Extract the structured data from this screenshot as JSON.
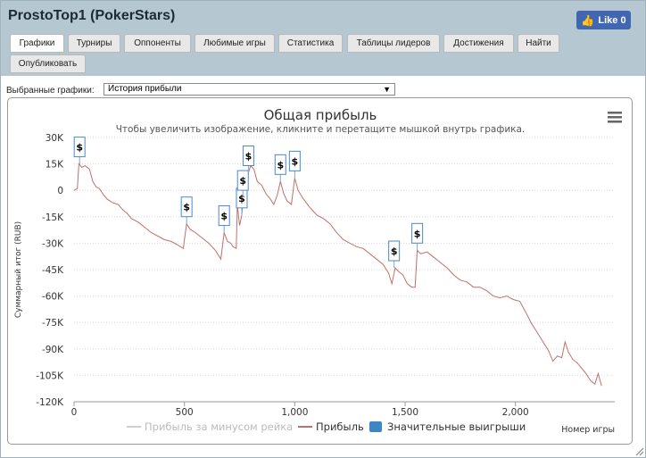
{
  "window": {
    "title": "ProstoTop1 (PokerStars)"
  },
  "like": {
    "label": "Like 0"
  },
  "tabs": [
    {
      "label": "Графики",
      "active": true
    },
    {
      "label": "Турниры"
    },
    {
      "label": "Оппоненты"
    },
    {
      "label": "Любимые игры"
    },
    {
      "label": "Статистика"
    },
    {
      "label": "Таблицы лидеров"
    },
    {
      "label": "Достижения"
    },
    {
      "label": "Найти"
    },
    {
      "label": "Опубликовать"
    }
  ],
  "selector": {
    "label": "Выбранные графики:",
    "value": "История прибыли"
  },
  "chart_data": {
    "type": "line",
    "title": "Общая прибыль",
    "subtitle": "Чтобы увеличить изображение, кликните и перетащите мышкой внутрь графика.",
    "xlabel": "Номер игры",
    "ylabel": "Суммарный итог (RUB)",
    "xlim": [
      0,
      2450
    ],
    "ylim": [
      -120000,
      30000
    ],
    "x_ticks": [
      "0",
      "500",
      "1,000",
      "1,500",
      "2,000"
    ],
    "y_ticks": [
      "30K",
      "15K",
      "0",
      "-15K",
      "-30K",
      "-45K",
      "-60K",
      "-75K",
      "-90K",
      "-105K",
      "-120K"
    ],
    "grid": "horizontal",
    "legend_position": "bottom",
    "legend": [
      "Прибыль за минусом рейка",
      "Прибыль",
      "Значительные выигрыши"
    ],
    "series": [
      {
        "name": "Прибыль",
        "color": "#c0706a",
        "points": [
          [
            0,
            0
          ],
          [
            15,
            1000
          ],
          [
            22,
            15000
          ],
          [
            35,
            13000
          ],
          [
            50,
            14000
          ],
          [
            70,
            12000
          ],
          [
            85,
            5000
          ],
          [
            100,
            2000
          ],
          [
            115,
            1000
          ],
          [
            130,
            -2000
          ],
          [
            150,
            -5000
          ],
          [
            175,
            -7000
          ],
          [
            200,
            -8000
          ],
          [
            220,
            -11000
          ],
          [
            240,
            -13000
          ],
          [
            260,
            -16000
          ],
          [
            290,
            -18000
          ],
          [
            320,
            -21000
          ],
          [
            350,
            -24000
          ],
          [
            380,
            -26000
          ],
          [
            410,
            -28000
          ],
          [
            440,
            -29000
          ],
          [
            470,
            -31000
          ],
          [
            495,
            -33000
          ],
          [
            510,
            -19000
          ],
          [
            525,
            -22000
          ],
          [
            550,
            -24000
          ],
          [
            580,
            -27000
          ],
          [
            610,
            -30000
          ],
          [
            640,
            -34000
          ],
          [
            665,
            -39000
          ],
          [
            680,
            -24000
          ],
          [
            695,
            -29000
          ],
          [
            710,
            -30000
          ],
          [
            720,
            -32000
          ],
          [
            735,
            -33000
          ],
          [
            740,
            -8000
          ],
          [
            750,
            -20000
          ],
          [
            760,
            -14000
          ],
          [
            770,
            0
          ],
          [
            780,
            2000
          ],
          [
            790,
            10000
          ],
          [
            800,
            14000
          ],
          [
            815,
            12000
          ],
          [
            830,
            5000
          ],
          [
            850,
            3000
          ],
          [
            870,
            -2000
          ],
          [
            890,
            -5000
          ],
          [
            905,
            -8000
          ],
          [
            920,
            -3000
          ],
          [
            935,
            5000
          ],
          [
            950,
            -2000
          ],
          [
            965,
            -6000
          ],
          [
            985,
            -8000
          ],
          [
            1000,
            7000
          ],
          [
            1015,
            0
          ],
          [
            1040,
            -5000
          ],
          [
            1070,
            -10000
          ],
          [
            1100,
            -14000
          ],
          [
            1130,
            -16000
          ],
          [
            1160,
            -19000
          ],
          [
            1190,
            -24000
          ],
          [
            1220,
            -28000
          ],
          [
            1250,
            -30000
          ],
          [
            1280,
            -32000
          ],
          [
            1310,
            -33000
          ],
          [
            1340,
            -36000
          ],
          [
            1370,
            -39000
          ],
          [
            1400,
            -42000
          ],
          [
            1425,
            -47000
          ],
          [
            1440,
            -53000
          ],
          [
            1455,
            -44000
          ],
          [
            1470,
            -46000
          ],
          [
            1490,
            -48000
          ],
          [
            1510,
            -53000
          ],
          [
            1530,
            -55000
          ],
          [
            1545,
            -55000
          ],
          [
            1555,
            -34000
          ],
          [
            1570,
            -36000
          ],
          [
            1600,
            -35000
          ],
          [
            1630,
            -38000
          ],
          [
            1660,
            -41000
          ],
          [
            1690,
            -44000
          ],
          [
            1720,
            -48000
          ],
          [
            1750,
            -51000
          ],
          [
            1780,
            -52000
          ],
          [
            1810,
            -55000
          ],
          [
            1840,
            -55000
          ],
          [
            1870,
            -57000
          ],
          [
            1900,
            -60000
          ],
          [
            1930,
            -61000
          ],
          [
            1960,
            -60000
          ],
          [
            1990,
            -62000
          ],
          [
            2020,
            -63000
          ],
          [
            2050,
            -70000
          ],
          [
            2070,
            -75000
          ],
          [
            2090,
            -79000
          ],
          [
            2110,
            -83000
          ],
          [
            2130,
            -87000
          ],
          [
            2150,
            -91000
          ],
          [
            2170,
            -97000
          ],
          [
            2190,
            -94000
          ],
          [
            2210,
            -95000
          ],
          [
            2225,
            -86000
          ],
          [
            2240,
            -92000
          ],
          [
            2260,
            -96000
          ],
          [
            2280,
            -98000
          ],
          [
            2300,
            -101000
          ],
          [
            2320,
            -104000
          ],
          [
            2340,
            -108000
          ],
          [
            2360,
            -110000
          ],
          [
            2375,
            -104000
          ],
          [
            2390,
            -111000
          ]
        ]
      }
    ],
    "big_wins": [
      {
        "x": 25,
        "y": 15000,
        "label": "$"
      },
      {
        "x": 510,
        "y": -19000,
        "label": "$"
      },
      {
        "x": 680,
        "y": -24000,
        "label": "$"
      },
      {
        "x": 760,
        "y": -14000,
        "label": "$"
      },
      {
        "x": 765,
        "y": -4000,
        "label": "$"
      },
      {
        "x": 790,
        "y": 10000,
        "label": "$"
      },
      {
        "x": 935,
        "y": 5000,
        "label": "$"
      },
      {
        "x": 1000,
        "y": 7000,
        "label": "$"
      },
      {
        "x": 1450,
        "y": -44000,
        "label": "$"
      },
      {
        "x": 1555,
        "y": -34000,
        "label": "$"
      }
    ],
    "menu_icon": "hamburger-icon"
  }
}
